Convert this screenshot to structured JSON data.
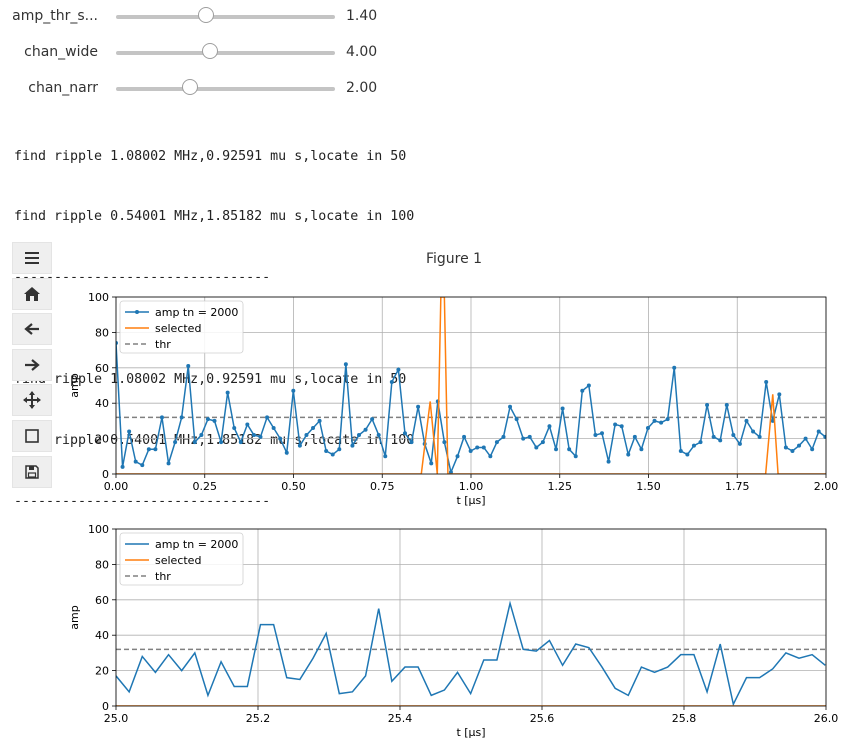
{
  "sliders": [
    {
      "label": "amp_thr_s...",
      "value_text": "1.40",
      "fraction": 0.41
    },
    {
      "label": "chan_wide",
      "value_text": "4.00",
      "fraction": 0.43
    },
    {
      "label": "chan_narr",
      "value_text": "2.00",
      "fraction": 0.34
    }
  ],
  "log_lines": [
    "find ripple 1.08002 MHz,0.92591 mu s,locate in 50",
    "find ripple 0.54001 MHz,1.85182 mu s,locate in 100",
    "--------------------------------",
    "",
    "find ripple 1.08002 MHz,0.92591 mu s,locate in 50",
    "find ripple 0.54001 MHz,1.85182 mu s,locate in 100",
    "--------------------------------"
  ],
  "toolbar": {
    "buttons": [
      {
        "name": "menu-icon",
        "glyph": "☰"
      },
      {
        "name": "home-icon",
        "glyph": "⌂"
      },
      {
        "name": "back-icon",
        "glyph": "←"
      },
      {
        "name": "forward-icon",
        "glyph": "→"
      },
      {
        "name": "pan-icon",
        "glyph": "✥"
      },
      {
        "name": "zoom-rect-icon",
        "glyph": "☐"
      },
      {
        "name": "save-icon",
        "glyph": "▣"
      }
    ]
  },
  "figure_title": "Figure 1",
  "colors": {
    "series": "#1f77b4",
    "selected": "#ff7f0e",
    "thr": "#808080"
  },
  "chart_data": [
    {
      "type": "line",
      "xlabel": "t [μs]",
      "ylabel": "amp",
      "xlim": [
        0,
        2
      ],
      "ylim": [
        0,
        100
      ],
      "xticks": [
        "0.00",
        "0.25",
        "0.50",
        "0.75",
        "1.00",
        "1.25",
        "1.50",
        "1.75",
        "2.00"
      ],
      "yticks": [
        "0",
        "20",
        "40",
        "60",
        "80",
        "100"
      ],
      "grid": true,
      "legend_position": "top-left",
      "markers": true,
      "series": [
        {
          "name": "amp tn = 2000",
          "x_start": 0.0,
          "x_step": 0.0185,
          "values": [
            74,
            4,
            24,
            7,
            5,
            14,
            14,
            32,
            6,
            18,
            32,
            61,
            18,
            22,
            31,
            30,
            18,
            46,
            26,
            18,
            28,
            22,
            21,
            32,
            26,
            20,
            12,
            47,
            16,
            22,
            26,
            30,
            13,
            11,
            14,
            62,
            16,
            22,
            25,
            31,
            22,
            10,
            52,
            59,
            23,
            18,
            38,
            17,
            6,
            41,
            18,
            1,
            10,
            21,
            13,
            15,
            15,
            10,
            18,
            21,
            38,
            31,
            20,
            21,
            15,
            18,
            27,
            14,
            37,
            14,
            10,
            47,
            50,
            22,
            23,
            7,
            28,
            27,
            11,
            21,
            14,
            26,
            30,
            29,
            31,
            60,
            13,
            11,
            16,
            18,
            39,
            21,
            19,
            39,
            22,
            17,
            30,
            24,
            21,
            52,
            30,
            45,
            15,
            13,
            16,
            20,
            14,
            24,
            21,
            22
          ]
        },
        {
          "name": "selected",
          "points": [
            [
              0,
              0
            ],
            [
              0.86,
              0
            ],
            [
              0.885,
              41
            ],
            [
              0.905,
              0
            ],
            [
              0.915,
              100
            ],
            [
              0.925,
              100
            ],
            [
              0.935,
              0
            ],
            [
              1.83,
              0
            ],
            [
              1.85,
              45
            ],
            [
              1.865,
              0
            ],
            [
              2,
              0
            ]
          ]
        },
        {
          "name": "thr",
          "constant": 32
        }
      ]
    },
    {
      "type": "line",
      "xlabel": "t [μs]",
      "ylabel": "amp",
      "xlim": [
        25,
        26
      ],
      "ylim": [
        0,
        100
      ],
      "xticks": [
        "25.0",
        "25.2",
        "25.4",
        "25.6",
        "25.8",
        "26.0"
      ],
      "yticks": [
        "0",
        "20",
        "40",
        "60",
        "80",
        "100"
      ],
      "grid": true,
      "legend_position": "top-left",
      "markers": false,
      "series": [
        {
          "name": "amp tn = 2000",
          "x_start": 25.0,
          "x_step": 0.0185,
          "values": [
            17,
            8,
            28,
            19,
            29,
            20,
            30,
            6,
            25,
            11,
            11,
            46,
            46,
            16,
            15,
            27,
            41,
            7,
            8,
            17,
            55,
            14,
            22,
            22,
            6,
            9,
            19,
            7,
            26,
            26,
            58,
            32,
            31,
            37,
            23,
            35,
            33,
            22,
            10,
            6,
            22,
            19,
            22,
            29,
            29,
            8,
            35,
            1,
            16,
            16,
            21,
            30,
            27,
            29,
            23
          ]
        },
        {
          "name": "selected",
          "points": [
            [
              25,
              0
            ],
            [
              26,
              0
            ]
          ]
        },
        {
          "name": "thr",
          "constant": 32
        }
      ]
    }
  ]
}
